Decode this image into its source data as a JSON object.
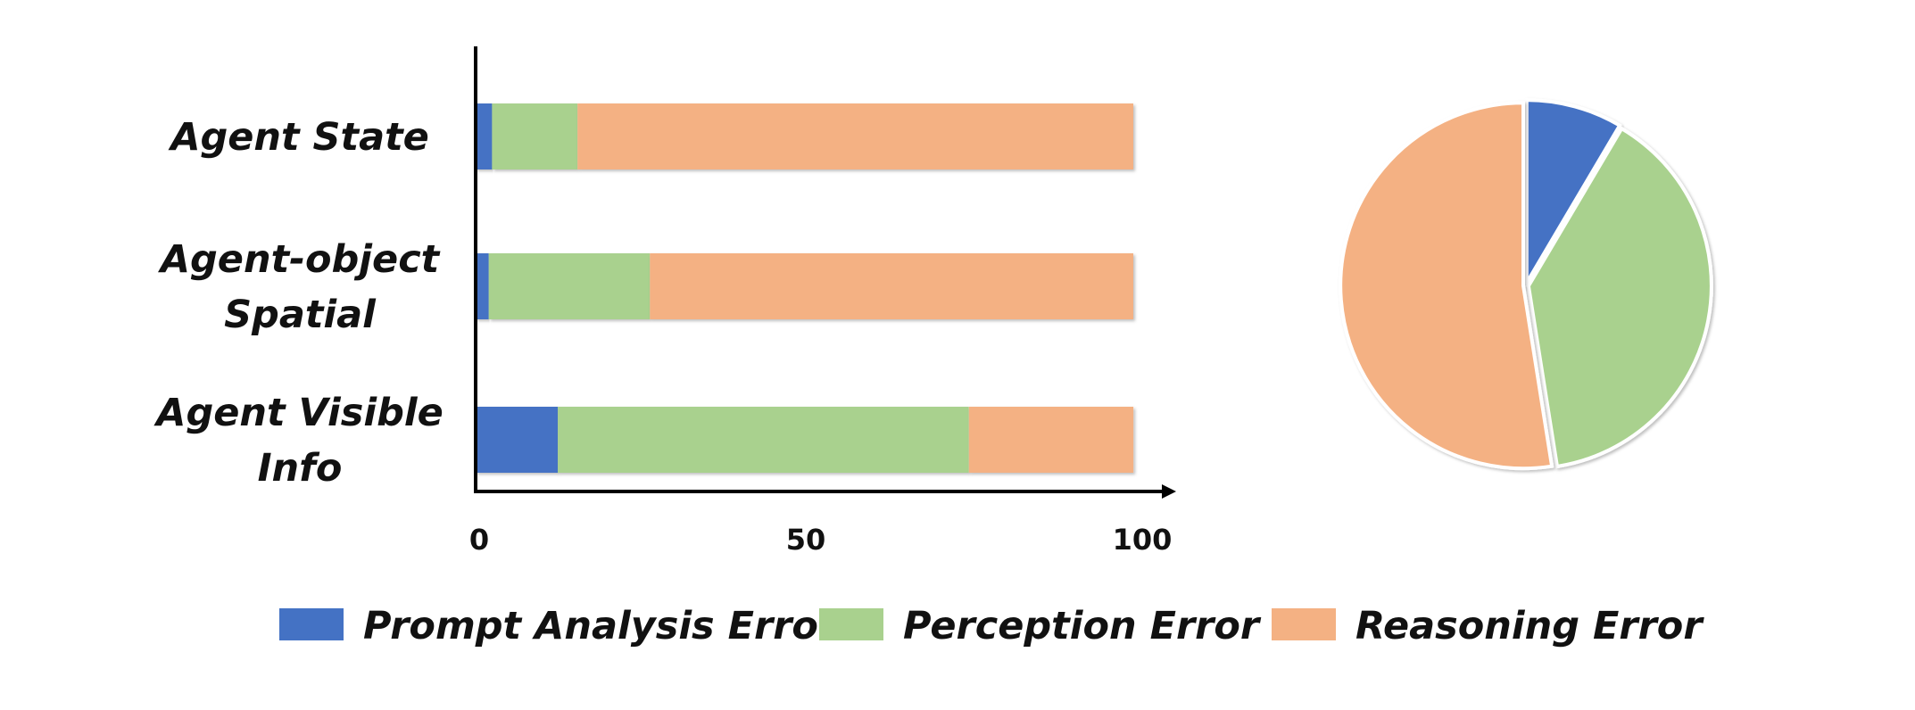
{
  "chart_data": [
    {
      "type": "bar",
      "orientation": "horizontal",
      "stacked": true,
      "categories": [
        "Agent State",
        "Agent-object Spatial",
        "Agent Visible Info"
      ],
      "category_lines": [
        [
          "Agent State"
        ],
        [
          "Agent-object",
          "Spatial"
        ],
        [
          "Agent Visible",
          "Info"
        ]
      ],
      "series": [
        {
          "name": "Prompt Analysis Error",
          "color": "#4472C4",
          "values": [
            2.5,
            2,
            12.5
          ]
        },
        {
          "name": "Perception Error",
          "color": "#A9D18E",
          "values": [
            13,
            24.5,
            62.5
          ]
        },
        {
          "name": "Reasoning Error",
          "color": "#F4B183",
          "values": [
            84.5,
            73.5,
            25
          ]
        }
      ],
      "xlim": [
        0,
        100
      ],
      "xticks": [
        0,
        50,
        100
      ],
      "xtick_labels": [
        "0",
        "50",
        "100"
      ],
      "grid": false,
      "legend": "bottom"
    },
    {
      "type": "pie",
      "slices": [
        {
          "name": "Prompt Analysis Error",
          "color": "#4472C4",
          "value": 8.5
        },
        {
          "name": "Perception Error",
          "color": "#A9D18E",
          "value": 39
        },
        {
          "name": "Reasoning Error",
          "color": "#F4B183",
          "value": 52.5
        }
      ],
      "start_angle_deg": 0,
      "direction": "clockwise"
    }
  ],
  "legend": {
    "items": [
      {
        "label": "Prompt Analysis Error",
        "color": "#4472C4"
      },
      {
        "label": "Perception Error",
        "color": "#A9D18E"
      },
      {
        "label": "Reasoning Error",
        "color": "#F4B183"
      }
    ]
  }
}
